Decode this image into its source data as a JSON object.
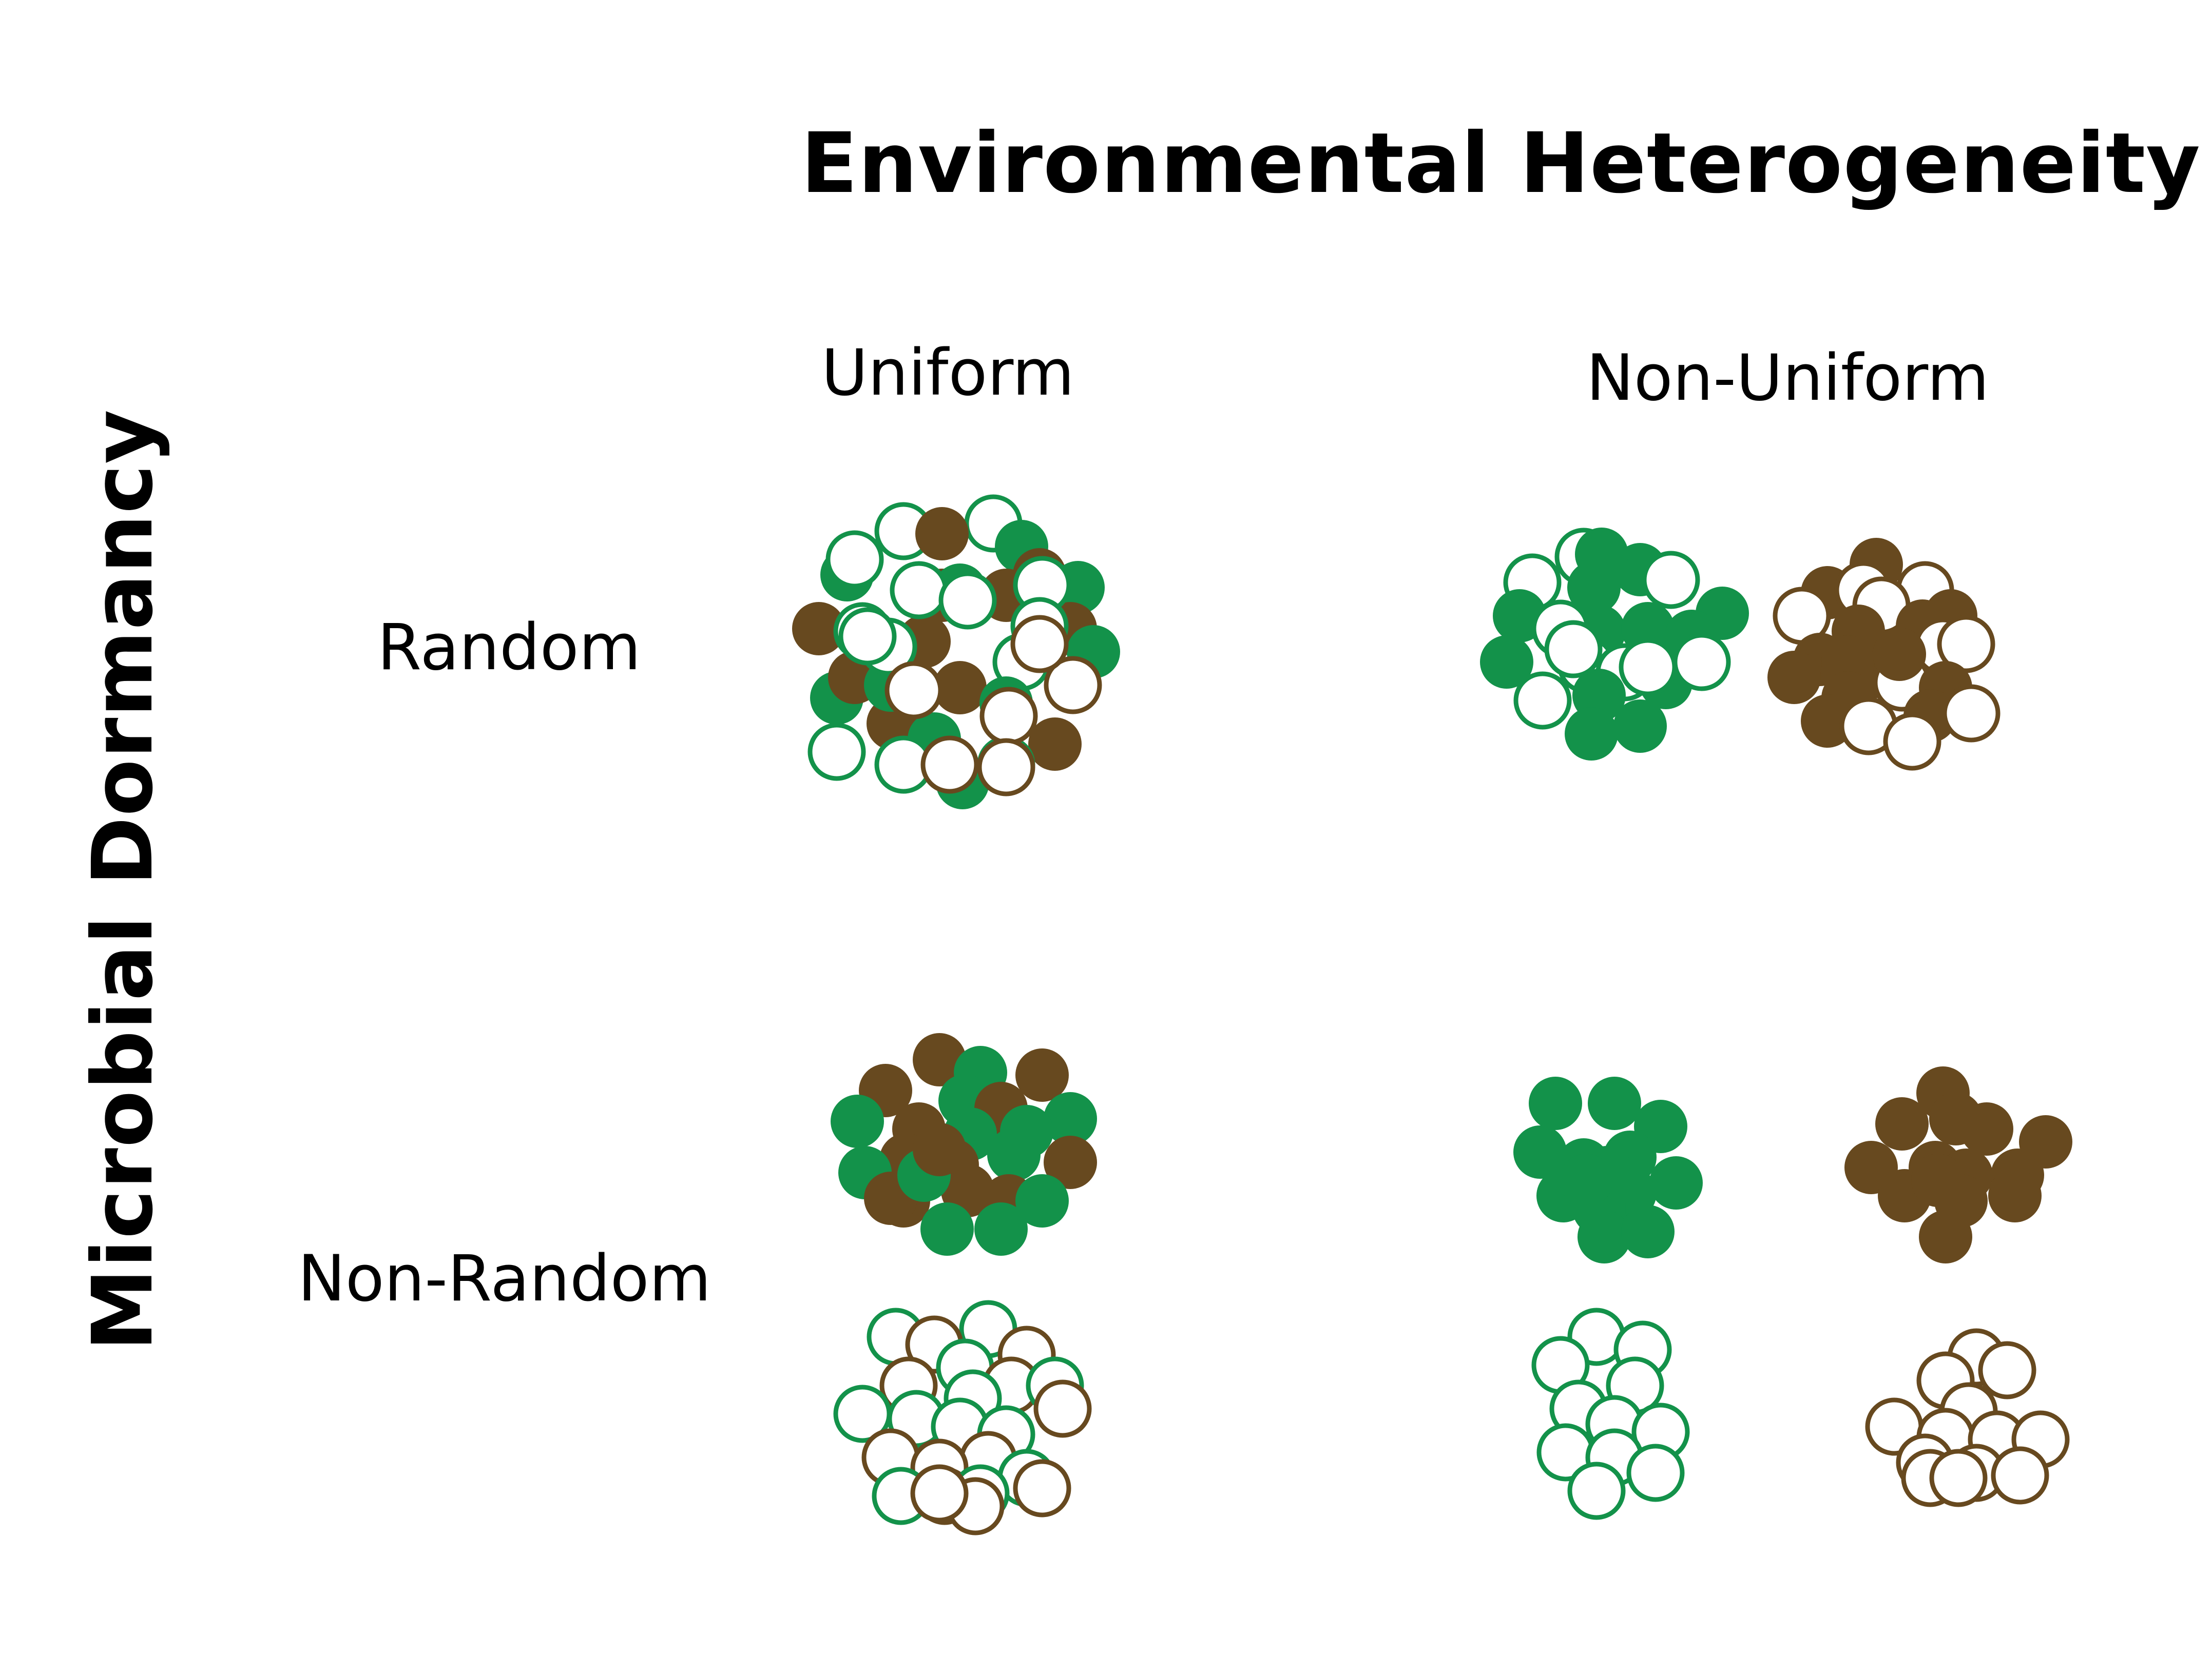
{
  "title": "Environmental Heterogeneity",
  "y_title": "Microbial Dormancy",
  "columns": {
    "uniform": "Uniform",
    "non_uniform": "Non-Uniform"
  },
  "rows": {
    "random": "Random",
    "non_random": "Non-Random"
  },
  "colors": {
    "green": "#13924a",
    "brown": "#67491f",
    "background": "#ffffff"
  },
  "legend_meaning": {
    "fill": [
      "filled",
      "hollow"
    ],
    "color": [
      "green",
      "brown"
    ]
  }
}
